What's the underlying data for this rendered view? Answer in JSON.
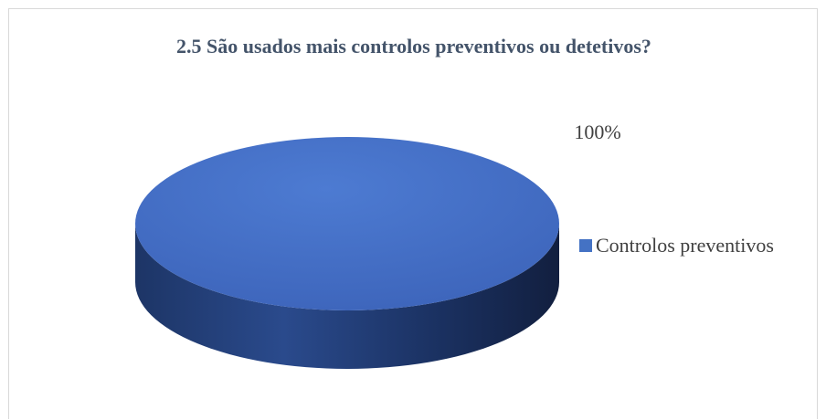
{
  "chart_data": {
    "type": "pie",
    "title": "2.5 São usados mais controlos preventivos ou detetivos?",
    "slices": [
      {
        "name": "Controlos preventivos",
        "value": 100,
        "label": "100%"
      }
    ],
    "legend_position": "right",
    "colors": {
      "slice_top_light": "#4a78cf",
      "slice_top_dark": "#3f67bf",
      "slice_side_light": "#2a4a8c",
      "slice_side_dark": "#16264a",
      "title": "#44546a",
      "label": "#404040",
      "legend_swatch": "#4472c4"
    }
  }
}
